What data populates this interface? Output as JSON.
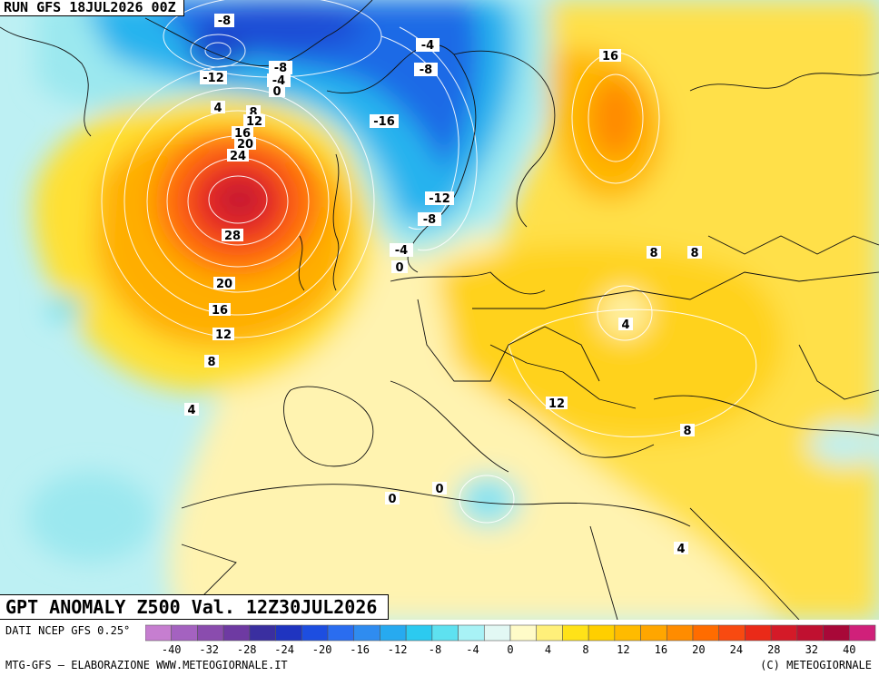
{
  "header": {
    "run_label": "RUN GFS 18JUL2026 00Z",
    "product_title": "GPT ANOMALY Z500 Val. 12Z30JUL2026"
  },
  "footer": {
    "source_label": "DATI NCEP GFS 0.25°",
    "credit_left": "MTG-GFS – ELABORAZIONE WWW.METEOGIORNALE.IT",
    "credit_right": "(C) METEOGIORNALE"
  },
  "map_labels": [
    "-8",
    "-12",
    "-4",
    "-8",
    "-4",
    "0",
    "-8",
    "-16",
    "-12",
    "-8",
    "-4",
    "0",
    "4",
    "8",
    "12",
    "16",
    "20",
    "24",
    "28",
    "20",
    "16",
    "12",
    "8",
    "4",
    "16",
    "8",
    "8",
    "4",
    "12",
    "8",
    "0",
    "0",
    "4"
  ],
  "legend": {
    "tick_labels": [
      "-40",
      "-32",
      "-28",
      "-24",
      "-20",
      "-16",
      "-12",
      "-8",
      "-4",
      "0",
      "4",
      "8",
      "12",
      "16",
      "20",
      "24",
      "28",
      "32",
      "40"
    ],
    "colors": [
      "#c67ed0",
      "#a462c0",
      "#8a4cae",
      "#6e3aa2",
      "#3a2fa0",
      "#1f34c0",
      "#1d4ee0",
      "#2a6df0",
      "#2f8cf0",
      "#27aaf0",
      "#2ccaf0",
      "#5ee1f0",
      "#a8f2f6",
      "#e2f8f4",
      "#fffbc8",
      "#fff07a",
      "#ffe218",
      "#ffcf00",
      "#ffbb00",
      "#ffa600",
      "#ff8c00",
      "#ff6c00",
      "#f84a10",
      "#ea2a18",
      "#d41a28",
      "#c01030",
      "#a80838",
      "#d0207a"
    ]
  },
  "colors": {
    "ocean_base": "#bdf0f3",
    "land_base": "#fff5ba",
    "pos_small": "#ffec8a",
    "pos_mid": "#ffd21c",
    "pos_high": "#ff9a00",
    "pos_peak": "#e02428",
    "neg_small": "#9be8ef",
    "neg_mid": "#26b3ee",
    "neg_deep": "#1d55de"
  }
}
